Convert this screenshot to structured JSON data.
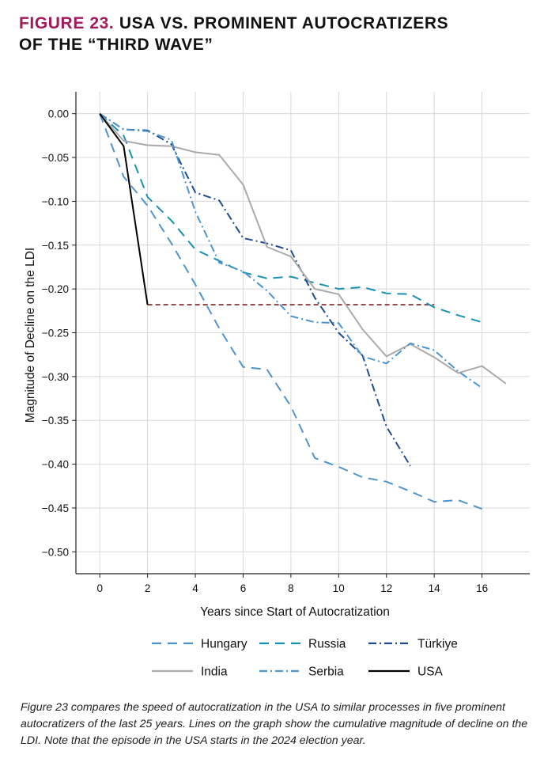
{
  "figure": {
    "label": "FIGURE 23.",
    "title_line1": "USA VS. PROMINENT AUTOCRATIZERS",
    "title_line2": "OF THE “THIRD WAVE”"
  },
  "chart_data": {
    "type": "line",
    "title": "USA vs. Prominent Autocratizers of the “Third Wave”",
    "xlabel": "Years since Start of Autocratization",
    "ylabel": "Magnitude of Decline on the LDI",
    "xlim": [
      -1,
      18
    ],
    "ylim": [
      -0.525,
      0.025
    ],
    "xticks": [
      0,
      2,
      4,
      6,
      8,
      10,
      12,
      14,
      16
    ],
    "xtick_labels": [
      "0",
      "2",
      "4",
      "6",
      "8",
      "10",
      "12",
      "14",
      "16"
    ],
    "yticks": [
      0,
      -0.05,
      -0.1,
      -0.15,
      -0.2,
      -0.25,
      -0.3,
      -0.35,
      -0.4,
      -0.45,
      -0.5
    ],
    "ytick_labels": [
      "0.00",
      "−0.05",
      "−0.10",
      "−0.15",
      "−0.20",
      "−0.25",
      "−0.30",
      "−0.35",
      "−0.40",
      "−0.45",
      "−0.50"
    ],
    "grid": true,
    "legend_position": "bottom",
    "series": [
      {
        "name": "Hungary",
        "key": "hungary",
        "color": "#4f94cf",
        "dash": "12 8",
        "width": 2,
        "x": [
          0,
          1,
          2,
          3,
          4,
          5,
          6,
          7,
          8,
          9,
          10,
          11,
          12,
          13,
          14,
          15,
          16
        ],
        "y": [
          0,
          -0.072,
          -0.105,
          -0.148,
          -0.195,
          -0.245,
          -0.289,
          -0.292,
          -0.334,
          -0.393,
          -0.403,
          -0.415,
          -0.42,
          -0.431,
          -0.443,
          -0.441,
          -0.451
        ]
      },
      {
        "name": "Russia",
        "key": "russia",
        "color": "#1a91b3",
        "dash": "12 8",
        "width": 2,
        "x": [
          0,
          1,
          2,
          3,
          4,
          5,
          6,
          7,
          8,
          9,
          10,
          11,
          12,
          13,
          14,
          15,
          16
        ],
        "y": [
          0,
          -0.025,
          -0.095,
          -0.122,
          -0.155,
          -0.168,
          -0.181,
          -0.188,
          -0.186,
          -0.193,
          -0.2,
          -0.198,
          -0.205,
          -0.206,
          -0.221,
          -0.23,
          -0.238
        ]
      },
      {
        "name": "Türkiye",
        "key": "turkiye",
        "color": "#1f4d8f",
        "dash": "10 4 2 4",
        "width": 2,
        "x": [
          0,
          1,
          2,
          3,
          4,
          5,
          6,
          7,
          8,
          9,
          10,
          11,
          12,
          13
        ],
        "y": [
          0,
          -0.018,
          -0.019,
          -0.035,
          -0.09,
          -0.099,
          -0.142,
          -0.148,
          -0.156,
          -0.21,
          -0.25,
          -0.276,
          -0.357,
          -0.402
        ]
      },
      {
        "name": "India",
        "key": "india",
        "color": "#aaaaaa",
        "dash": "",
        "width": 2,
        "x": [
          0,
          1,
          2,
          3,
          4,
          5,
          6,
          7,
          8,
          9,
          10,
          11,
          12,
          13,
          14,
          15,
          16,
          17
        ],
        "y": [
          0,
          -0.031,
          -0.036,
          -0.037,
          -0.044,
          -0.047,
          -0.081,
          -0.152,
          -0.163,
          -0.2,
          -0.206,
          -0.246,
          -0.277,
          -0.263,
          -0.278,
          -0.296,
          -0.288,
          -0.308
        ]
      },
      {
        "name": "Serbia",
        "key": "serbia",
        "color": "#4f94cf",
        "dash": "10 4 2 4",
        "width": 2,
        "x": [
          0,
          1,
          2,
          3,
          4,
          5,
          6,
          7,
          8,
          9,
          10,
          11,
          12,
          13,
          14,
          15,
          16
        ],
        "y": [
          0,
          -0.018,
          -0.02,
          -0.03,
          -0.112,
          -0.17,
          -0.18,
          -0.202,
          -0.231,
          -0.238,
          -0.239,
          -0.277,
          -0.285,
          -0.262,
          -0.27,
          -0.294,
          -0.313
        ]
      },
      {
        "name": "USA",
        "key": "usa",
        "color": "#000000",
        "dash": "",
        "width": 2,
        "x": [
          0,
          1,
          2
        ],
        "y": [
          0,
          -0.037,
          -0.218
        ]
      }
    ],
    "reference_line": {
      "y": -0.218,
      "x_start": 2,
      "x_end": 14,
      "color": "#7a1f1f",
      "dash": "6 4"
    }
  },
  "caption": "Figure 23 compares the speed of autocratization in the USA to similar processes in five prominent autocratizers of the last 25 years. Lines on the graph show the cumulative magnitude of decline on the LDI. Note that the episode in the USA starts in the 2024 election year."
}
